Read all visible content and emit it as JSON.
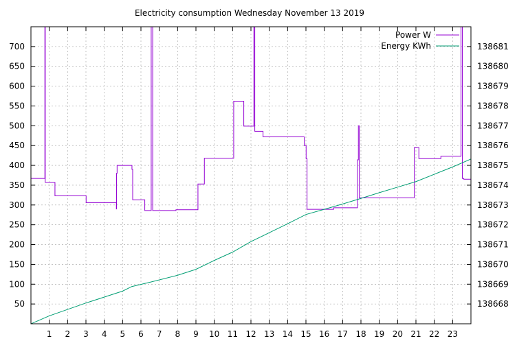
{
  "chart_data": {
    "type": "line",
    "title": "Electricity consumption Wednesday November 13 2019",
    "xlim": [
      0,
      24
    ],
    "ylim_left": [
      0,
      750
    ],
    "ylim_right": [
      138667,
      138682
    ],
    "x_ticks": [
      1,
      2,
      3,
      4,
      5,
      6,
      7,
      8,
      9,
      10,
      11,
      12,
      13,
      14,
      15,
      16,
      17,
      18,
      19,
      20,
      21,
      22,
      23
    ],
    "y_ticks_left": [
      50,
      100,
      150,
      200,
      250,
      300,
      350,
      400,
      450,
      500,
      550,
      600,
      650,
      700
    ],
    "y_ticks_right": [
      138668,
      138669,
      138670,
      138671,
      138672,
      138673,
      138674,
      138675,
      138676,
      138677,
      138678,
      138679,
      138680,
      138681
    ],
    "grid": true,
    "legend_position": "top-right",
    "colors": {
      "power": "#9400d3",
      "energy": "#009e73",
      "grid": "#a0a0a0"
    },
    "series": [
      {
        "name": "Power W",
        "axis": "left",
        "style": "step",
        "points": [
          [
            0.0,
            367
          ],
          [
            0.75,
            367
          ],
          [
            0.76,
            750
          ],
          [
            0.78,
            357
          ],
          [
            1.3,
            357
          ],
          [
            1.31,
            323
          ],
          [
            3.0,
            323
          ],
          [
            3.01,
            306
          ],
          [
            4.65,
            306
          ],
          [
            4.66,
            290
          ],
          [
            4.67,
            380
          ],
          [
            4.7,
            400
          ],
          [
            5.5,
            400
          ],
          [
            5.51,
            390
          ],
          [
            5.55,
            313
          ],
          [
            6.2,
            313
          ],
          [
            6.21,
            286
          ],
          [
            6.55,
            286
          ],
          [
            6.56,
            750
          ],
          [
            6.63,
            750
          ],
          [
            6.64,
            286
          ],
          [
            7.9,
            286
          ],
          [
            7.91,
            288
          ],
          [
            9.1,
            288
          ],
          [
            9.11,
            353
          ],
          [
            9.45,
            353
          ],
          [
            9.46,
            418
          ],
          [
            11.05,
            418
          ],
          [
            11.06,
            562
          ],
          [
            11.6,
            562
          ],
          [
            11.61,
            499
          ],
          [
            12.15,
            499
          ],
          [
            12.16,
            750
          ],
          [
            12.2,
            750
          ],
          [
            12.21,
            486
          ],
          [
            12.65,
            486
          ],
          [
            12.66,
            472
          ],
          [
            14.9,
            472
          ],
          [
            14.91,
            450
          ],
          [
            15.0,
            450
          ],
          [
            15.01,
            417
          ],
          [
            15.05,
            417
          ],
          [
            15.06,
            289
          ],
          [
            16.5,
            289
          ],
          [
            16.51,
            293
          ],
          [
            17.8,
            293
          ],
          [
            17.81,
            414
          ],
          [
            17.85,
            414
          ],
          [
            17.86,
            500
          ],
          [
            17.9,
            500
          ],
          [
            17.91,
            318
          ],
          [
            20.9,
            318
          ],
          [
            20.91,
            445
          ],
          [
            21.15,
            445
          ],
          [
            21.16,
            417
          ],
          [
            22.35,
            417
          ],
          [
            22.36,
            423
          ],
          [
            23.45,
            423
          ],
          [
            23.46,
            750
          ],
          [
            23.52,
            750
          ],
          [
            23.53,
            367
          ],
          [
            23.6,
            367
          ],
          [
            23.61,
            365
          ],
          [
            24.0,
            365
          ]
        ]
      },
      {
        "name": "Energy KWh",
        "axis": "right",
        "style": "line",
        "points": [
          [
            0.0,
            138667.0
          ],
          [
            1.0,
            138667.4
          ],
          [
            3.0,
            138668.05
          ],
          [
            5.0,
            138668.65
          ],
          [
            5.5,
            138668.88
          ],
          [
            6.5,
            138669.1
          ],
          [
            8.0,
            138669.45
          ],
          [
            9.0,
            138669.75
          ],
          [
            10.0,
            138670.2
          ],
          [
            11.0,
            138670.62
          ],
          [
            12.0,
            138671.15
          ],
          [
            13.0,
            138671.6
          ],
          [
            14.0,
            138672.05
          ],
          [
            15.0,
            138672.52
          ],
          [
            16.0,
            138672.78
          ],
          [
            17.0,
            138673.05
          ],
          [
            18.0,
            138673.33
          ],
          [
            19.0,
            138673.62
          ],
          [
            20.0,
            138673.9
          ],
          [
            21.0,
            138674.18
          ],
          [
            22.0,
            138674.55
          ],
          [
            23.0,
            138674.92
          ],
          [
            24.0,
            138675.32
          ]
        ]
      }
    ]
  }
}
